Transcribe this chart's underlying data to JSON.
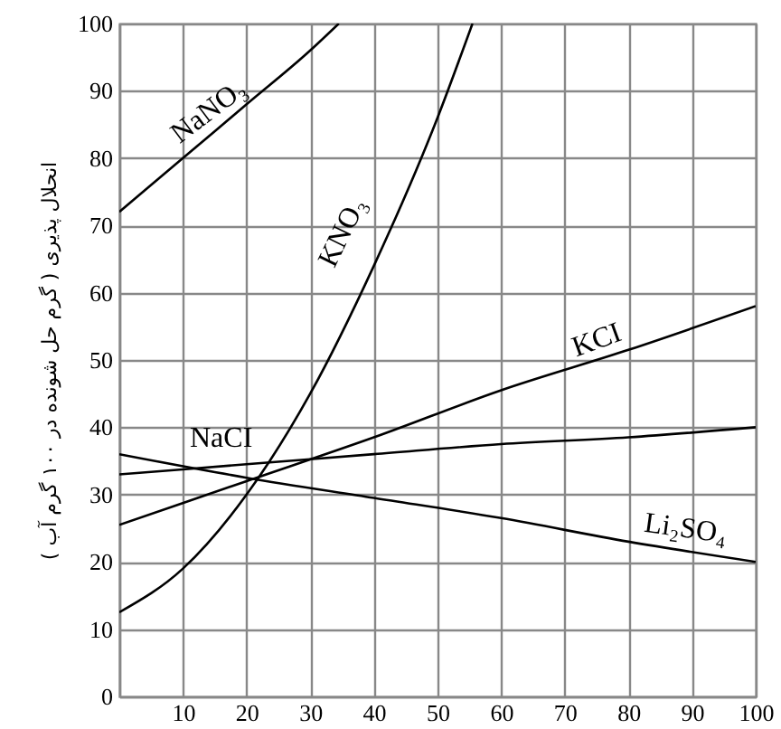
{
  "chart_data": {
    "type": "line",
    "ylabel": "انحلال پذیری ( گرم حل شونده در ۱۰۰ گرم آب )",
    "xlim": [
      0,
      100
    ],
    "ylim": [
      0,
      100
    ],
    "xticks": [
      {
        "value": 0,
        "label": null
      },
      10,
      20,
      30,
      40,
      50,
      60,
      70,
      80,
      90,
      100
    ],
    "yticks": [
      0,
      10,
      20,
      30,
      40,
      50,
      60,
      70,
      80,
      90,
      100
    ],
    "grid": true,
    "line_style": "solid",
    "marker": "none",
    "series": [
      {
        "name": "NaNO₃",
        "color": "#000000",
        "x": [
          0,
          10,
          20,
          30,
          34.5
        ],
        "values": [
          72,
          80,
          88,
          96,
          100
        ]
      },
      {
        "name": "KNO₃",
        "color": "#000000",
        "x": [
          0,
          10,
          20,
          30,
          40,
          50,
          55.5
        ],
        "values": [
          12.5,
          19,
          30,
          45,
          64,
          86,
          100
        ]
      },
      {
        "name": "KCI",
        "color": "#000000",
        "x": [
          0,
          20,
          40,
          60,
          80,
          100
        ],
        "values": [
          25.5,
          32,
          38.5,
          45.5,
          51.5,
          58
        ]
      },
      {
        "name": "NaCI",
        "color": "#000000",
        "x": [
          0,
          20,
          40,
          60,
          80,
          100
        ],
        "values": [
          33,
          34.5,
          36,
          37.5,
          38.5,
          40
        ]
      },
      {
        "name": "Li₂SO₄",
        "color": "#000000",
        "x": [
          0,
          20,
          40,
          60,
          80,
          100
        ],
        "values": [
          36,
          32.5,
          29.5,
          26.5,
          23,
          20
        ]
      }
    ]
  }
}
